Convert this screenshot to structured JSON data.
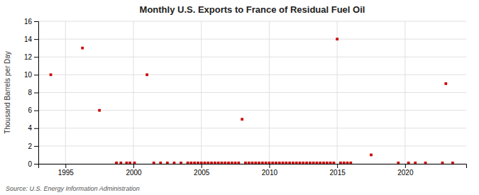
{
  "chart_data": {
    "type": "scatter",
    "title": "Monthly U.S. Exports to France of Residual Fuel Oil",
    "ylabel": "Thousand Barrels per Day",
    "source": "Source: U.S. Energy Information Administration",
    "color": "#cc0000",
    "marker": "square",
    "grid": true,
    "xlim": [
      1993.0,
      2024.5
    ],
    "ylim": [
      0,
      16
    ],
    "xticks": [
      1995,
      2000,
      2005,
      2010,
      2015,
      2020
    ],
    "yticks": [
      0,
      2,
      4,
      6,
      8,
      10,
      12,
      14,
      16
    ],
    "x": [
      1993.917,
      1996.25,
      1997.5,
      1998.75,
      1999.08,
      1999.5,
      1999.75,
      2000.08,
      2001.0,
      2001.5,
      2002.0,
      2002.5,
      2003.0,
      2003.5,
      2004.0,
      2004.25,
      2004.5,
      2004.75,
      2005.0,
      2005.25,
      2005.5,
      2005.75,
      2006.0,
      2006.25,
      2006.5,
      2006.75,
      2007.0,
      2007.25,
      2007.5,
      2007.75,
      2008.0,
      2008.25,
      2008.5,
      2008.75,
      2009.0,
      2009.25,
      2009.5,
      2009.75,
      2010.0,
      2010.25,
      2010.5,
      2010.75,
      2011.0,
      2011.25,
      2011.5,
      2011.75,
      2012.0,
      2012.25,
      2012.5,
      2012.75,
      2013.0,
      2013.25,
      2013.5,
      2013.75,
      2014.0,
      2014.25,
      2014.5,
      2014.75,
      2015.0,
      2015.25,
      2015.5,
      2015.75,
      2016.0,
      2017.5,
      2019.5,
      2020.25,
      2020.75,
      2021.5,
      2022.75,
      2023.0,
      2023.5
    ],
    "values": [
      10.0,
      13.0,
      6.0,
      0.1,
      0.1,
      0.1,
      0.1,
      0.1,
      10.0,
      0.1,
      0.1,
      0.1,
      0.1,
      0.1,
      0.1,
      0.1,
      0.1,
      0.1,
      0.1,
      0.1,
      0.1,
      0.1,
      0.1,
      0.1,
      0.1,
      0.1,
      0.1,
      0.1,
      0.1,
      0.1,
      5.0,
      0.1,
      0.1,
      0.1,
      0.1,
      0.1,
      0.1,
      0.1,
      0.1,
      0.1,
      0.1,
      0.1,
      0.1,
      0.1,
      0.1,
      0.1,
      0.1,
      0.1,
      0.1,
      0.1,
      0.1,
      0.1,
      0.1,
      0.1,
      0.1,
      0.1,
      0.1,
      0.1,
      14.0,
      0.1,
      0.1,
      0.1,
      0.1,
      1.0,
      0.1,
      0.1,
      0.1,
      0.1,
      0.1,
      9.0,
      0.1
    ]
  }
}
